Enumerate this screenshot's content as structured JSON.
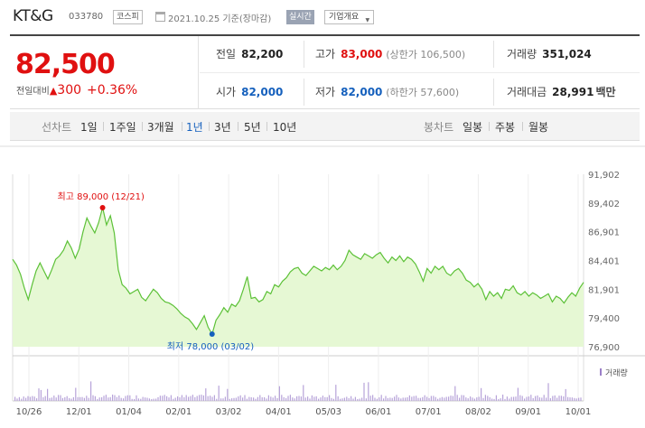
{
  "header": {
    "company_name": "KT&G",
    "ticker": "033780",
    "market_badge": "코스피",
    "as_of": "2021.10.25 기준(장마감)",
    "live_badge": "실시간",
    "company_info_select": "기업개요"
  },
  "quote": {
    "price": "82,500",
    "change_label": "전일대비",
    "change_amount": "300",
    "change_percent": "+0.36%",
    "up_color": "#e01010",
    "down_color": "#1560bd",
    "prev_close": {
      "label": "전일",
      "value": "82,200"
    },
    "high": {
      "label": "고가",
      "value": "83,000",
      "sub": "(상한가 106,500)"
    },
    "volume": {
      "label": "거래량",
      "value": "351,024"
    },
    "open": {
      "label": "시가",
      "value": "82,000"
    },
    "low": {
      "label": "저가",
      "value": "82,000",
      "sub": "(하한가 57,600)"
    },
    "trade_value": {
      "label": "거래대금",
      "value": "28,991",
      "unit": "백만"
    }
  },
  "period_tabs": {
    "label": "선차트",
    "items": [
      "1일",
      "1주일",
      "3개월",
      "1년",
      "3년",
      "5년",
      "10년"
    ],
    "selected": "1년"
  },
  "candle_tabs": {
    "label": "봉차트",
    "items": [
      "일봉",
      "주봉",
      "월봉"
    ]
  },
  "chart_data": {
    "type": "area",
    "ylim": [
      76900,
      91902
    ],
    "y_ticks": [
      "91,902",
      "89,402",
      "86,901",
      "84,401",
      "81,901",
      "79,400",
      "76,900"
    ],
    "x_ticks": [
      "10/26",
      "12/01",
      "01/04",
      "02/01",
      "03/02",
      "04/01",
      "05/03",
      "06/01",
      "07/01",
      "08/02",
      "09/01",
      "10/01"
    ],
    "max_label": "최고 89,000 (12/21)",
    "min_label": "최저 78,000 (03/02)",
    "max_value": 89000,
    "min_value": 78000,
    "volume_legend": "거래량",
    "line_color": "#5cc137",
    "fill_color": "#e6f8d4",
    "max_color": "#e01010",
    "min_color": "#1560bd",
    "values": [
      84500,
      84000,
      83200,
      82000,
      81000,
      82300,
      83500,
      84200,
      83500,
      82800,
      83600,
      84500,
      84800,
      85300,
      86100,
      85500,
      84600,
      85400,
      86900,
      88100,
      87400,
      86800,
      87700,
      89000,
      87500,
      88300,
      86800,
      83600,
      82300,
      82000,
      81500,
      81700,
      81900,
      81200,
      80900,
      81400,
      81900,
      81600,
      81100,
      80800,
      80700,
      80500,
      80200,
      79800,
      79500,
      79300,
      78900,
      78400,
      79000,
      79600,
      78600,
      78000,
      79200,
      79700,
      80300,
      79900,
      80600,
      80400,
      80900,
      81900,
      83000,
      81100,
      81200,
      80800,
      81000,
      81700,
      81500,
      82300,
      82100,
      82600,
      82900,
      83400,
      83700,
      83800,
      83300,
      83100,
      83500,
      83900,
      83700,
      83500,
      83800,
      83600,
      84000,
      83600,
      83900,
      84400,
      85300,
      84900,
      84700,
      84500,
      85000,
      84800,
      84600,
      84900,
      85100,
      84600,
      84200,
      84700,
      84400,
      84800,
      84300,
      84700,
      84500,
      84100,
      83400,
      82600,
      83700,
      83300,
      83900,
      83600,
      83900,
      83300,
      83100,
      83500,
      83700,
      83300,
      82700,
      82500,
      82100,
      82400,
      81900,
      81000,
      81700,
      81300,
      81600,
      81100,
      81900,
      81800,
      82200,
      81600,
      81400,
      81700,
      81300,
      81600,
      81400,
      81100,
      81300,
      81500,
      80800,
      81300,
      81100,
      80700,
      81200,
      81600,
      81300,
      82000,
      82500
    ]
  }
}
